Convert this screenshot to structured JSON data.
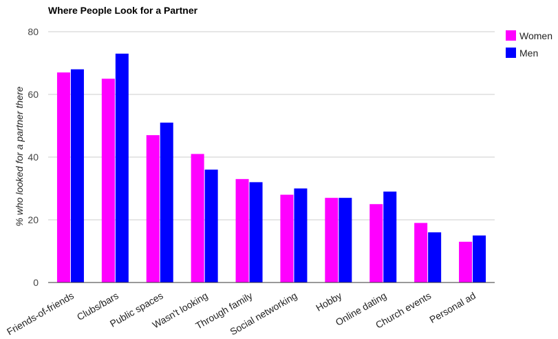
{
  "chart_data": {
    "type": "bar",
    "title": "Where People Look for a Partner",
    "ylabel": "% who looked for a partner there",
    "xlabel": "",
    "ylim": [
      0,
      80
    ],
    "yticks": [
      0,
      20,
      40,
      60,
      80
    ],
    "grid": true,
    "legend_position": "right",
    "categories": [
      "Friends-of-friends",
      "Clubs/bars",
      "Public spaces",
      "Wasn't looking",
      "Through family",
      "Social networking",
      "Hobby",
      "Online dating",
      "Church events",
      "Personal ad"
    ],
    "series": [
      {
        "name": "Women",
        "color": "#ff00ff",
        "values": [
          67,
          65,
          47,
          41,
          33,
          28,
          27,
          25,
          19,
          13
        ]
      },
      {
        "name": "Men",
        "color": "#0000ff",
        "values": [
          68,
          73,
          51,
          36,
          32,
          30,
          27,
          29,
          16,
          15
        ]
      }
    ]
  }
}
